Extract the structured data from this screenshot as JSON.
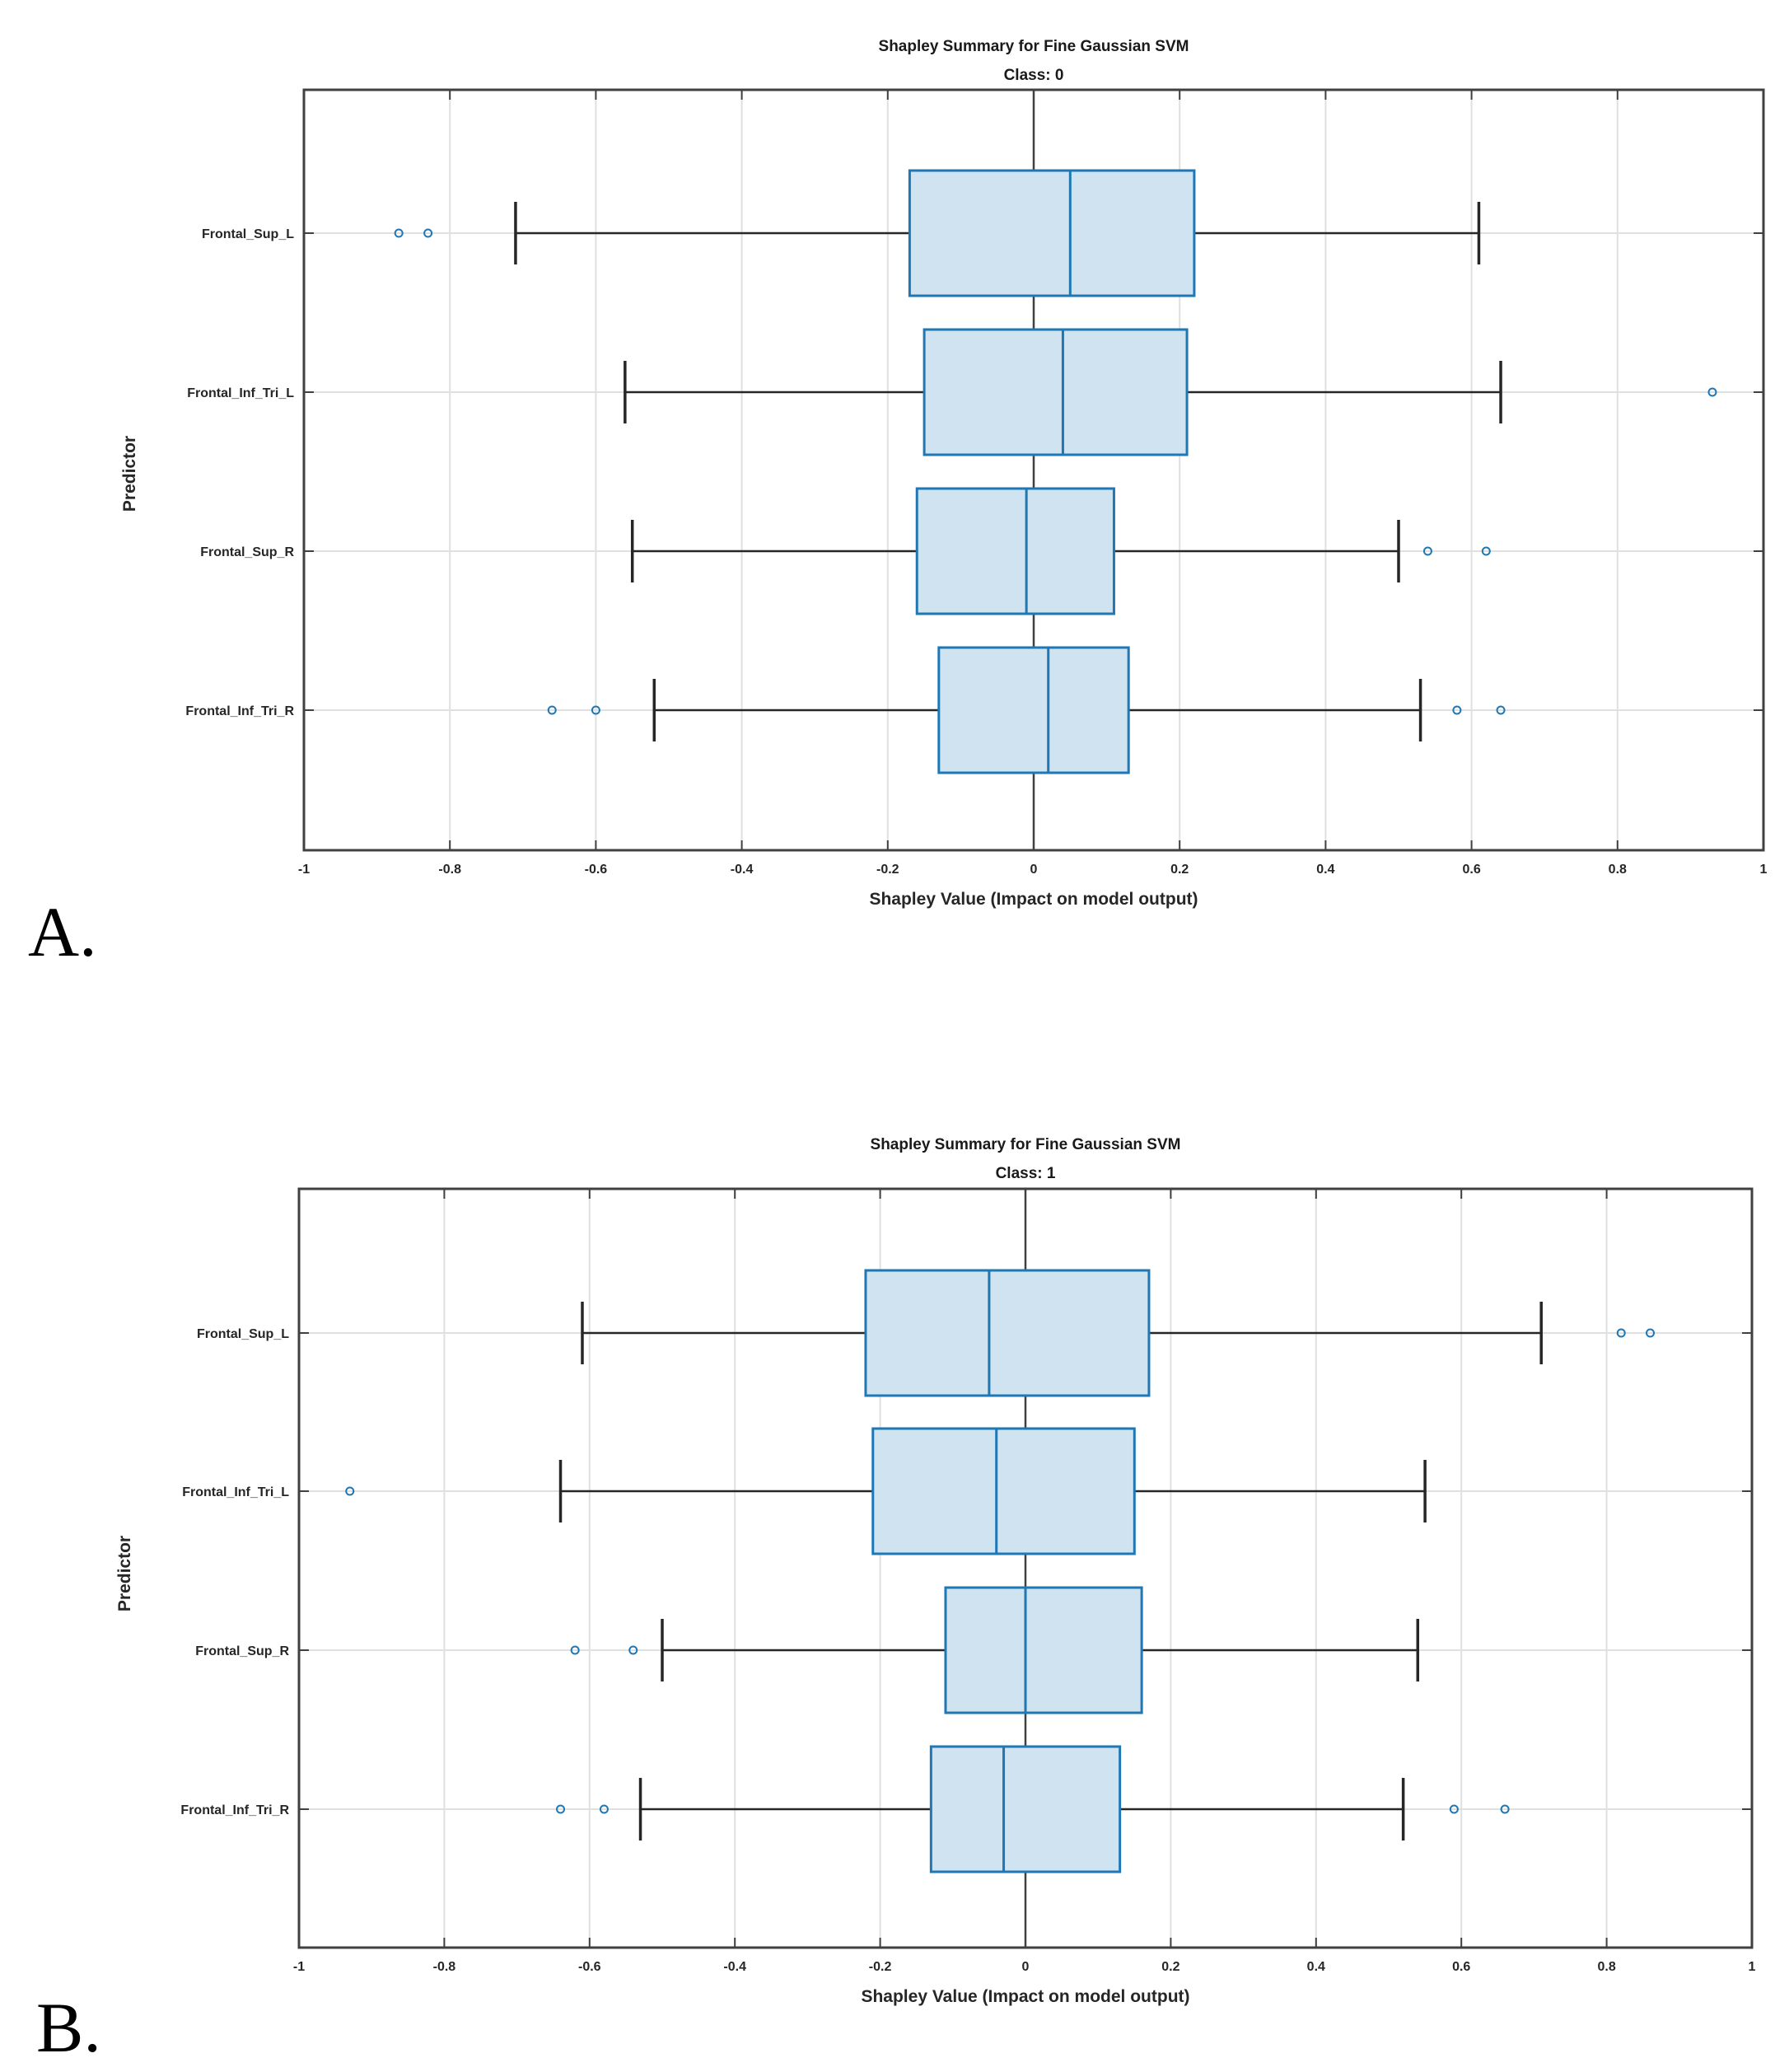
{
  "chart_data": [
    {
      "type": "boxplot",
      "panel_label": "A.",
      "title": "Shapley Summary for Fine Gaussian SVM",
      "subtitle": "Class: 0",
      "xlabel": "Shapley Value (Impact on model output)",
      "ylabel": "Predictor",
      "xlim": [
        -1,
        1
      ],
      "xticks": [
        -1,
        -0.8,
        -0.6,
        -0.4,
        -0.2,
        0,
        0.2,
        0.4,
        0.6,
        0.8,
        1
      ],
      "xtick_labels": [
        "-1",
        "-0.8",
        "-0.6",
        "-0.4",
        "-0.2",
        "0",
        "0.2",
        "0.4",
        "0.6",
        "0.8",
        "1"
      ],
      "grid": true,
      "predictors": [
        {
          "label": "Frontal_Sup_L",
          "whisker_low": -0.71,
          "q1": -0.17,
          "median": 0.05,
          "q3": 0.22,
          "whisker_high": 0.61,
          "outliers": [
            -0.87,
            -0.83
          ]
        },
        {
          "label": "Frontal_Inf_Tri_L",
          "whisker_low": -0.56,
          "q1": -0.15,
          "median": 0.04,
          "q3": 0.21,
          "whisker_high": 0.64,
          "outliers": [
            0.93
          ]
        },
        {
          "label": "Frontal_Sup_R",
          "whisker_low": -0.55,
          "q1": -0.16,
          "median": -0.01,
          "q3": 0.11,
          "whisker_high": 0.5,
          "outliers": [
            0.54,
            0.62
          ]
        },
        {
          "label": "Frontal_Inf_Tri_R",
          "whisker_low": -0.52,
          "q1": -0.13,
          "median": 0.02,
          "q3": 0.13,
          "whisker_high": 0.53,
          "outliers": [
            -0.66,
            -0.6,
            0.58,
            0.64
          ]
        }
      ]
    },
    {
      "type": "boxplot",
      "panel_label": "B.",
      "title": "Shapley Summary for Fine Gaussian SVM",
      "subtitle": "Class: 1",
      "xlabel": "Shapley Value (Impact on model output)",
      "ylabel": "Predictor",
      "xlim": [
        -1,
        1
      ],
      "xticks": [
        -1,
        -0.8,
        -0.6,
        -0.4,
        -0.2,
        0,
        0.2,
        0.4,
        0.6,
        0.8,
        1
      ],
      "xtick_labels": [
        "-1",
        "-0.8",
        "-0.6",
        "-0.4",
        "-0.2",
        "0",
        "0.2",
        "0.4",
        "0.6",
        "0.8",
        "1"
      ],
      "grid": true,
      "predictors": [
        {
          "label": "Frontal_Sup_L",
          "whisker_low": -0.61,
          "q1": -0.22,
          "median": -0.05,
          "q3": 0.17,
          "whisker_high": 0.71,
          "outliers": [
            0.82,
            0.86
          ]
        },
        {
          "label": "Frontal_Inf_Tri_L",
          "whisker_low": -0.64,
          "q1": -0.21,
          "median": -0.04,
          "q3": 0.15,
          "whisker_high": 0.55,
          "outliers": [
            -0.93
          ]
        },
        {
          "label": "Frontal_Sup_R",
          "whisker_low": -0.5,
          "q1": -0.11,
          "median": 0.0,
          "q3": 0.16,
          "whisker_high": 0.54,
          "outliers": [
            -0.62,
            -0.54
          ]
        },
        {
          "label": "Frontal_Inf_Tri_R",
          "whisker_low": -0.53,
          "q1": -0.13,
          "median": -0.03,
          "q3": 0.13,
          "whisker_high": 0.52,
          "outliers": [
            -0.64,
            -0.58,
            0.59,
            0.66
          ]
        }
      ]
    }
  ]
}
